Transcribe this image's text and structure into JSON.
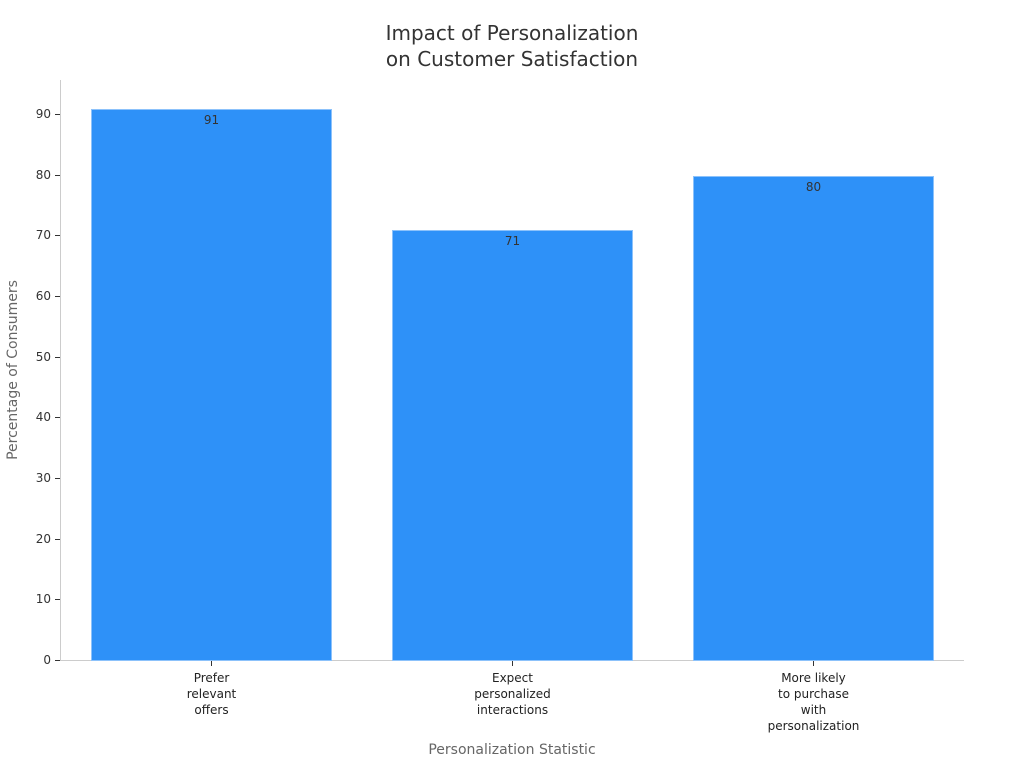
{
  "chart_data": {
    "type": "bar",
    "title": "Impact of Personalization\non Customer Satisfaction",
    "title_lines": [
      "Impact of Personalization",
      "on Customer Satisfaction"
    ],
    "xlabel": "Personalization Statistic",
    "ylabel": "Percentage of Consumers",
    "categories": [
      "Prefer relevant offers",
      "Expect personalized interactions",
      "More likely to purchase with personalization"
    ],
    "category_lines": [
      [
        "Prefer",
        "relevant",
        "offers"
      ],
      [
        "Expect",
        "personalized",
        "interactions"
      ],
      [
        "More likely",
        "to purchase",
        "with",
        "personalization"
      ]
    ],
    "values": [
      91,
      71,
      80
    ],
    "value_labels": [
      "91",
      "71",
      "80"
    ],
    "ylim": [
      0,
      96
    ],
    "yticks": [
      0,
      10,
      20,
      30,
      40,
      50,
      60,
      70,
      80,
      90
    ],
    "ytick_labels": [
      "0",
      "10",
      "20",
      "30",
      "40",
      "50",
      "60",
      "70",
      "80",
      "90"
    ],
    "grid": false,
    "legend": null,
    "colors": {
      "bar": "#2e91f8",
      "bar_edge": "#8cc2fb",
      "axis": "#cccccc",
      "text": "#333333"
    }
  }
}
